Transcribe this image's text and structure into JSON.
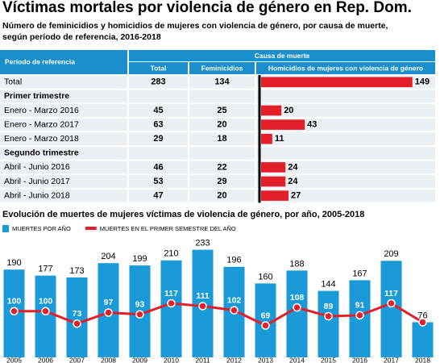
{
  "header": {
    "title": "Víctimas mortales por violencia de género en Rep. Dom.",
    "subtitle": [
      "Número de feminicidios y homicidios de mujeres con violencia de género, por causa de muerte,",
      "según período de referencia, 2016-2018"
    ]
  },
  "table": {
    "period_header": "Período de referencia",
    "group_header": "Causa de muerte",
    "columns": [
      "Total",
      "Feminicidios",
      "Homicidios de mujeres con violencia de género"
    ],
    "bar_color": "#e3202a",
    "header_color": "#1a8fcc",
    "rows": [
      {
        "label": "Total",
        "values": [
          283,
          134,
          149
        ]
      },
      {
        "label": "Primer trimestre"
      },
      {
        "label": "Enero - Marzo 2016",
        "values": [
          45,
          25,
          20
        ]
      },
      {
        "label": "Enero - Marzo 2017",
        "values": [
          63,
          20,
          43
        ]
      },
      {
        "label": "Enero - Marzo 2018",
        "values": [
          29,
          18,
          11
        ]
      },
      {
        "label": "Segundo trimestre"
      },
      {
        "label": "Abril - Junio 2016",
        "values": [
          46,
          22,
          24
        ]
      },
      {
        "label": "Abril - Junio 2017",
        "values": [
          53,
          29,
          24
        ]
      },
      {
        "label": "Abril - Junio 2018",
        "values": [
          47,
          20,
          27
        ]
      }
    ]
  },
  "chart_data": {
    "type": "bar",
    "title": "Evolución de muertes de mujeres víctimas de violencia de género, por año, 2005-2018",
    "categories": [
      "2005",
      "2006",
      "2007",
      "2008",
      "2009",
      "2010",
      "2011",
      "2012",
      "2013",
      "2014",
      "2015",
      "2016",
      "2017",
      "2018"
    ],
    "series": [
      {
        "name": "MUERTES POR AÑO",
        "type": "bar",
        "color": "#1a9ad6",
        "values": [
          190,
          177,
          173,
          204,
          199,
          210,
          233,
          196,
          160,
          188,
          144,
          167,
          209,
          76
        ]
      },
      {
        "name": "MUERTES EN EL PRIMER SEMESTRE DEL AÑO",
        "type": "line",
        "color": "#e3202a",
        "values": [
          100,
          100,
          73,
          97,
          93,
          117,
          111,
          102,
          69,
          108,
          89,
          91,
          117,
          76
        ],
        "value_labels": [
          "100",
          "100",
          "73",
          "97",
          "93",
          "117",
          "111",
          "102",
          "69",
          "108",
          "89",
          "91",
          "117",
          null
        ]
      }
    ],
    "ylim": [
      0,
      255
    ]
  }
}
